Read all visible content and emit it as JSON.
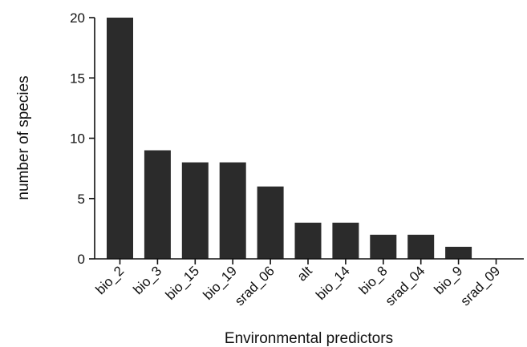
{
  "chart_data": {
    "type": "bar",
    "title": "",
    "xlabel": "Environmental predictors",
    "ylabel": "number of species",
    "categories": [
      "bio_2",
      "bio_3",
      "bio_15",
      "bio_19",
      "srad_06",
      "alt",
      "bio_14",
      "bio_8",
      "srad_04",
      "bio_9",
      "srad_09"
    ],
    "values": [
      20,
      9,
      8,
      8,
      6,
      3,
      3,
      2,
      2,
      1,
      0
    ],
    "ylim": [
      0,
      20
    ],
    "yticks": [
      "0",
      "5",
      "10",
      "15",
      "20"
    ],
    "grid": false,
    "legend": "none",
    "bar_color": "#2b2b2b"
  }
}
